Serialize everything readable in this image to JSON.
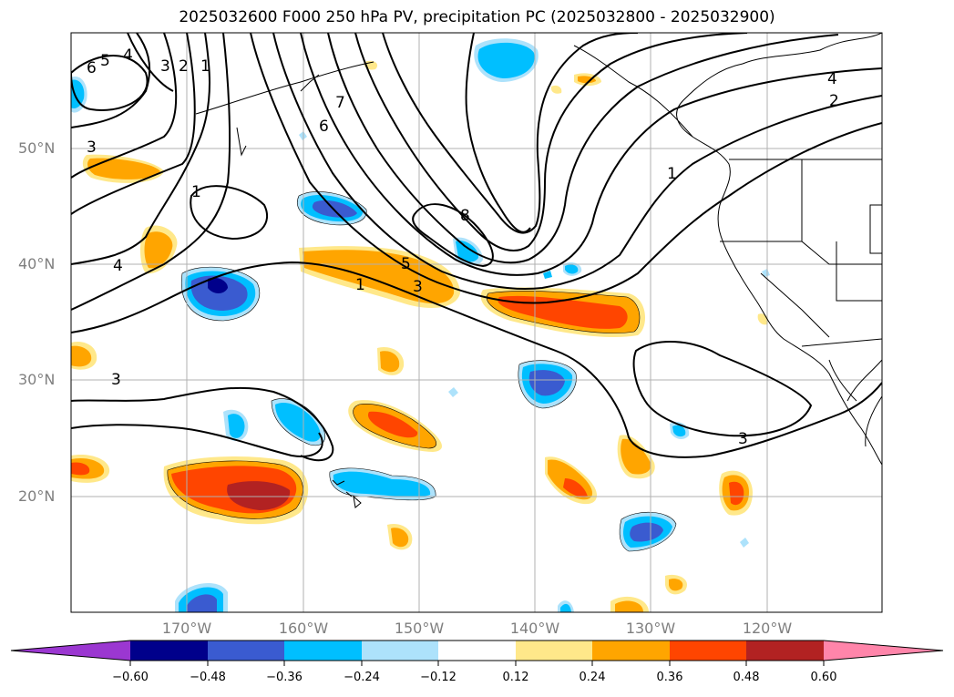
{
  "title": "2025032600 F000 250 hPa PV, precipitation PC (2025032800 - 2025032900)",
  "map": {
    "lat_labels": [
      "50°N",
      "40°N",
      "30°N",
      "20°N"
    ],
    "lon_labels": [
      "170°W",
      "160°W",
      "150°W",
      "140°W",
      "130°W",
      "120°W"
    ],
    "region": {
      "lon_min": -180,
      "lon_max": -110,
      "lat_min": 10,
      "lat_max": 60
    },
    "grid": true,
    "pv_contour_labels": [
      "6",
      "5",
      "4",
      "3",
      "2",
      "1",
      "7",
      "6",
      "4",
      "2",
      "1",
      "8",
      "5",
      "3",
      "1",
      "1",
      "4",
      "3",
      "3",
      "3"
    ]
  },
  "colorbar": {
    "tick_labels": [
      "−0.60",
      "−0.48",
      "−0.36",
      "−0.24",
      "−0.12",
      "0.12",
      "0.24",
      "0.36",
      "0.48",
      "0.60"
    ],
    "colors": [
      "#9b37d1",
      "#00008b",
      "#3a5bd0",
      "#00bfff",
      "#ade2fb",
      "#ffffff",
      "#ffe88a",
      "#ffa500",
      "#ff4500",
      "#b22222",
      "#ff85aa"
    ]
  }
}
